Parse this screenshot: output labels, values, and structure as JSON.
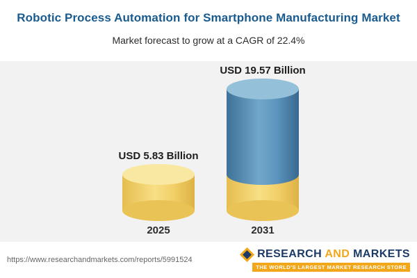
{
  "header": {
    "title": "Robotic Process Automation for Smartphone Manufacturing Market",
    "subtitle": "Market forecast to grow at a CAGR of 22.4%"
  },
  "chart_data": {
    "type": "bar",
    "variant": "3d-cylinder",
    "title": "Robotic Process Automation for Smartphone Manufacturing Market",
    "subtitle": "Market forecast to grow at a CAGR of 22.4%",
    "categories": [
      "2025",
      "2031"
    ],
    "values": [
      5.83,
      19.57
    ],
    "unit": "USD Billion",
    "value_labels": [
      "USD 5.83 Billion",
      "USD 19.57 Billion"
    ],
    "cagr_percent": 22.4,
    "ylim": [
      0,
      20
    ],
    "grid": false,
    "legend": false,
    "xlabel": "",
    "ylabel": "",
    "note": "2031 cylinder shows the 2025 base value as a gold segment at its bottom",
    "colors": {
      "bar_2025": "#f0ce62",
      "bar_2031": "#4c89b4",
      "bar_2031_base_segment": "#f0ce62",
      "panel_background": "#f2f2f2",
      "title_text": "#1a5b8f"
    }
  },
  "footer": {
    "url": "https://www.researchandmarkets.com/reports/5991524",
    "logo": {
      "word1": "RESEARCH",
      "word2": "AND",
      "word3": "MARKETS",
      "tagline": "THE WORLD'S LARGEST MARKET RESEARCH STORE"
    }
  }
}
